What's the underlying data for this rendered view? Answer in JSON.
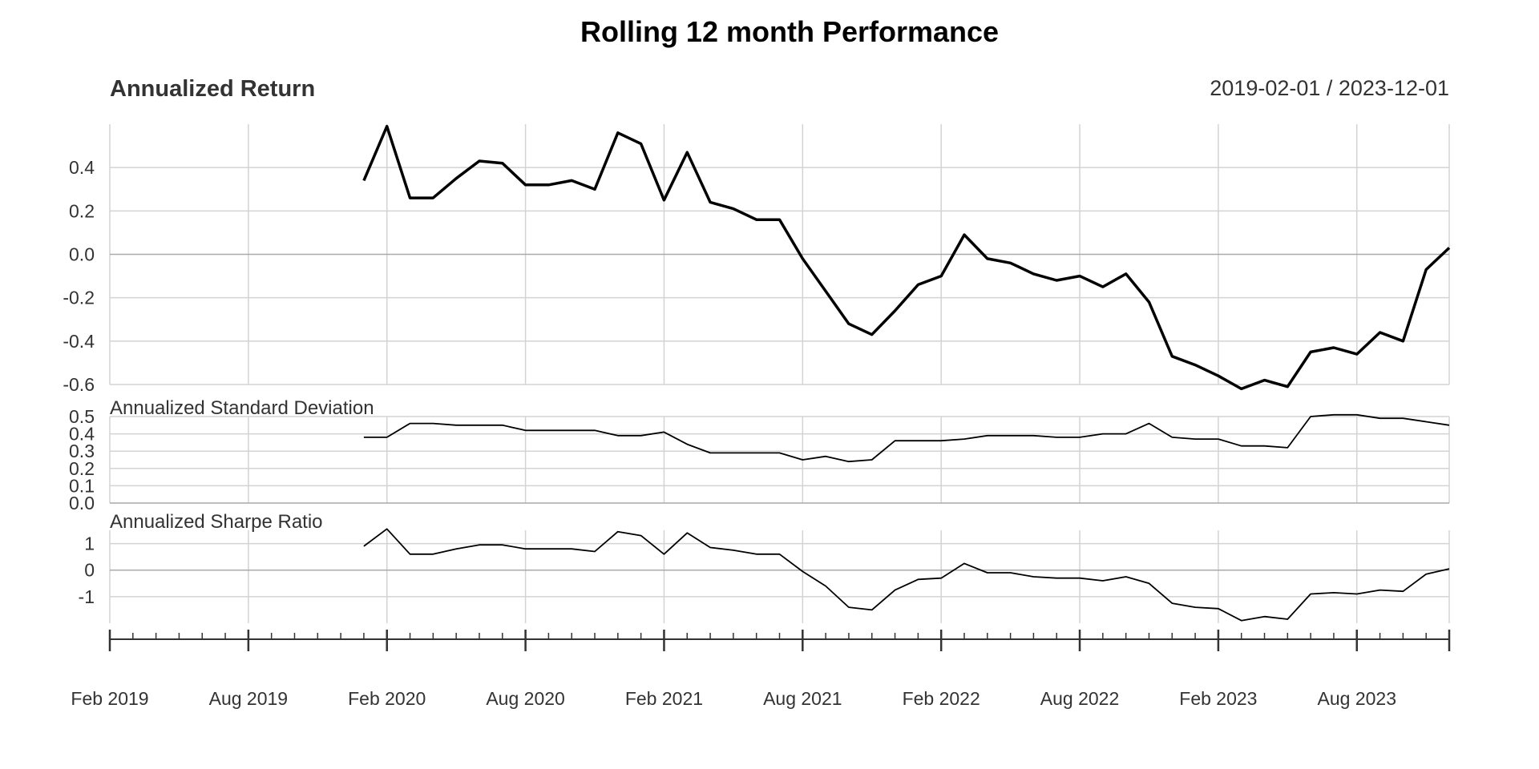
{
  "chart_data": {
    "type": "line",
    "title": "Rolling 12 month Performance",
    "date_range_label": "2019-02-01 / 2023-12-01",
    "x_start": "2019-02",
    "x_end": "2023-12",
    "x_tick_labels": [
      "Feb 2019",
      "Aug 2019",
      "Feb 2020",
      "Aug 2020",
      "Feb 2021",
      "Aug 2021",
      "Feb 2022",
      "Aug 2022",
      "Feb 2023",
      "Aug 2023"
    ],
    "x_tick_months": [
      "2019-02",
      "2019-08",
      "2020-02",
      "2020-08",
      "2021-02",
      "2021-08",
      "2022-02",
      "2022-08",
      "2023-02",
      "2023-08"
    ],
    "dates": [
      "2020-01",
      "2020-02",
      "2020-03",
      "2020-04",
      "2020-05",
      "2020-06",
      "2020-07",
      "2020-08",
      "2020-09",
      "2020-10",
      "2020-11",
      "2020-12",
      "2021-01",
      "2021-02",
      "2021-03",
      "2021-04",
      "2021-05",
      "2021-06",
      "2021-07",
      "2021-08",
      "2021-09",
      "2021-10",
      "2021-11",
      "2021-12",
      "2022-01",
      "2022-02",
      "2022-03",
      "2022-04",
      "2022-05",
      "2022-06",
      "2022-07",
      "2022-08",
      "2022-09",
      "2022-10",
      "2022-11",
      "2022-12",
      "2023-01",
      "2023-02",
      "2023-03",
      "2023-04",
      "2023-05",
      "2023-06",
      "2023-07",
      "2023-08",
      "2023-09",
      "2023-10",
      "2023-11",
      "2023-12"
    ],
    "panels": [
      {
        "title": "Annualized Return",
        "ylim": [
          -0.6,
          0.6
        ],
        "yticks": [
          "0.4",
          "0.2",
          "0.0",
          "-0.2",
          "-0.4",
          "-0.6"
        ],
        "ytick_values": [
          0.4,
          0.2,
          0.0,
          -0.2,
          -0.4,
          -0.6
        ],
        "values": [
          0.34,
          0.59,
          0.26,
          0.26,
          0.35,
          0.43,
          0.42,
          0.32,
          0.32,
          0.34,
          0.3,
          0.56,
          0.51,
          0.25,
          0.47,
          0.24,
          0.21,
          0.16,
          0.16,
          -0.02,
          -0.17,
          -0.32,
          -0.37,
          -0.26,
          -0.14,
          -0.1,
          0.09,
          -0.02,
          -0.04,
          -0.09,
          -0.12,
          -0.1,
          -0.15,
          -0.09,
          -0.22,
          -0.47,
          -0.51,
          -0.56,
          -0.62,
          -0.58,
          -0.61,
          -0.45,
          -0.43,
          -0.46,
          -0.36,
          -0.4,
          -0.07,
          0.03
        ]
      },
      {
        "title": "Annualized Standard Deviation",
        "ylim": [
          0.0,
          0.5
        ],
        "yticks": [
          "0.5",
          "0.4",
          "0.3",
          "0.2",
          "0.1",
          "0.0"
        ],
        "ytick_values": [
          0.5,
          0.4,
          0.3,
          0.2,
          0.1,
          0.0
        ],
        "values": [
          0.38,
          0.38,
          0.46,
          0.46,
          0.45,
          0.45,
          0.45,
          0.42,
          0.42,
          0.42,
          0.42,
          0.39,
          0.39,
          0.41,
          0.34,
          0.29,
          0.29,
          0.29,
          0.29,
          0.25,
          0.27,
          0.24,
          0.25,
          0.36,
          0.36,
          0.36,
          0.37,
          0.39,
          0.39,
          0.39,
          0.38,
          0.38,
          0.4,
          0.4,
          0.46,
          0.38,
          0.37,
          0.37,
          0.33,
          0.33,
          0.32,
          0.5,
          0.51,
          0.51,
          0.49,
          0.49,
          0.47,
          0.45
        ]
      },
      {
        "title": "Annualized Sharpe Ratio",
        "ylim": [
          -2.0,
          1.5
        ],
        "yticks": [
          "1",
          "0",
          "-1"
        ],
        "ytick_values": [
          1,
          0,
          -1
        ],
        "values": [
          0.9,
          1.55,
          0.6,
          0.6,
          0.8,
          0.95,
          0.95,
          0.8,
          0.8,
          0.8,
          0.7,
          1.45,
          1.3,
          0.6,
          1.4,
          0.85,
          0.75,
          0.6,
          0.6,
          -0.05,
          -0.6,
          -1.4,
          -1.5,
          -0.75,
          -0.35,
          -0.3,
          0.25,
          -0.1,
          -0.1,
          -0.25,
          -0.3,
          -0.3,
          -0.4,
          -0.25,
          -0.5,
          -1.25,
          -1.4,
          -1.45,
          -1.9,
          -1.75,
          -1.85,
          -0.9,
          -0.85,
          -0.9,
          -0.75,
          -0.8,
          -0.15,
          0.05
        ]
      }
    ]
  }
}
